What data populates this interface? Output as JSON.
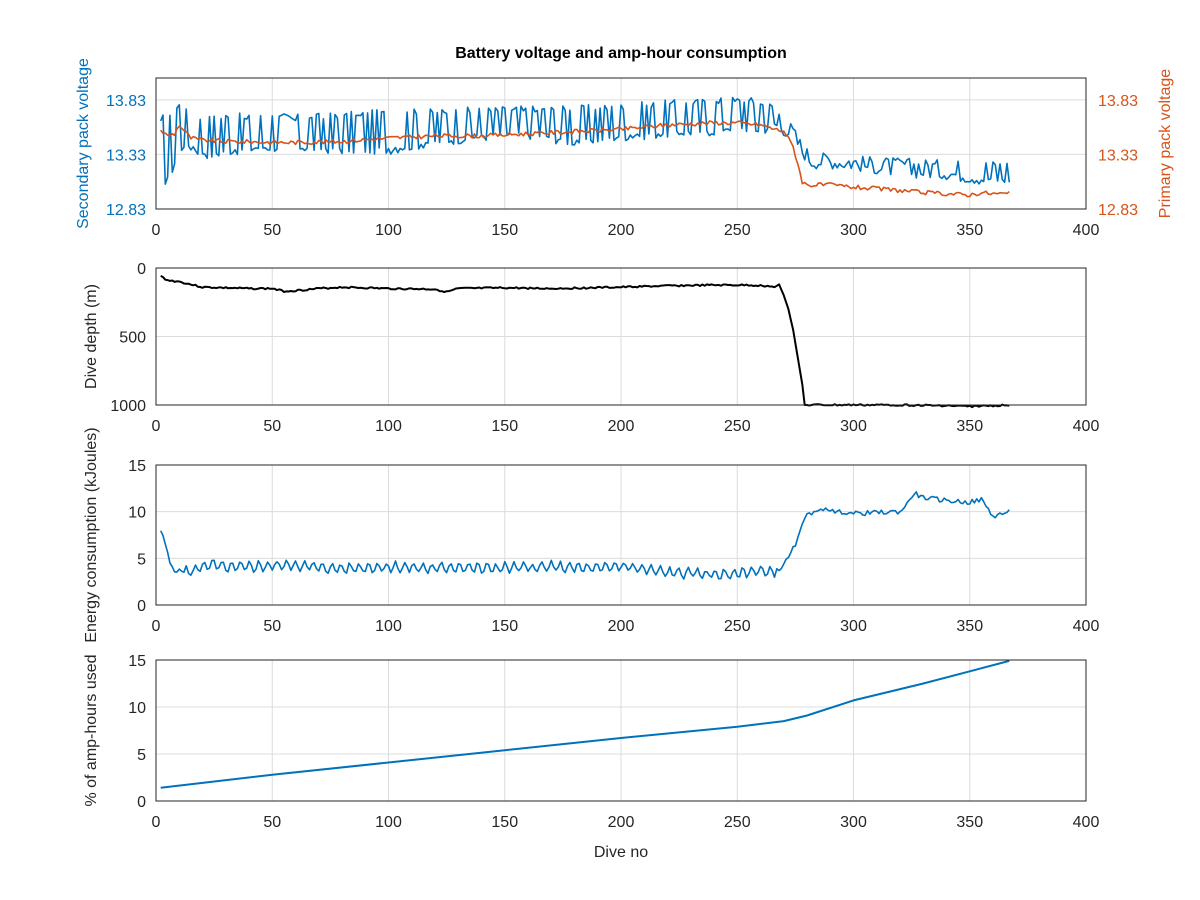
{
  "figure": {
    "title": "Battery voltage and amp-hour consumption",
    "colors": {
      "blue": "#0072BD",
      "orange": "#D95319",
      "black": "#000000",
      "grid": "#dcdcdc",
      "axis": "#262626"
    }
  },
  "chart_data": [
    {
      "type": "line",
      "title": "Battery voltage and amp-hour consumption",
      "xlabel": "",
      "ylabel": "Secondary pack voltage",
      "y2label": "Primary pack voltage",
      "xlim": [
        0,
        400
      ],
      "ylim": [
        12.83,
        14.03
      ],
      "y2lim": [
        12.83,
        14.03
      ],
      "xticks": [
        "0",
        "50",
        "100",
        "150",
        "200",
        "250",
        "300",
        "350",
        "400"
      ],
      "yticks": [
        "12.83",
        "13.33",
        "13.83"
      ],
      "y2ticks": [
        "12.83",
        "13.33",
        "13.83"
      ],
      "grid": true,
      "series": [
        {
          "axis": "left",
          "color": "#0072BD",
          "x": [
            2,
            4,
            6,
            8,
            10,
            12,
            15,
            20,
            25,
            30,
            40,
            50,
            60,
            80,
            100,
            120,
            140,
            160,
            180,
            200,
            220,
            240,
            250,
            260,
            266,
            270,
            274,
            278,
            282,
            290,
            300,
            320,
            340,
            355,
            367
          ],
          "y_low": [
            13.33,
            13.05,
            13.1,
            13.2,
            13.3,
            13.38,
            13.35,
            13.3,
            13.28,
            13.32,
            13.33,
            13.35,
            13.35,
            13.33,
            13.33,
            13.4,
            13.45,
            13.47,
            13.4,
            13.45,
            13.48,
            13.5,
            13.55,
            13.5,
            13.55,
            13.5,
            13.45,
            13.3,
            13.2,
            13.2,
            13.18,
            13.12,
            13.1,
            13.05,
            13.05
          ],
          "y_high": [
            13.65,
            13.75,
            13.7,
            13.8,
            13.83,
            13.78,
            13.7,
            13.68,
            13.7,
            13.72,
            13.7,
            13.72,
            13.7,
            13.72,
            13.75,
            13.75,
            13.77,
            13.78,
            13.78,
            13.8,
            13.83,
            13.85,
            13.87,
            13.85,
            13.8,
            13.7,
            13.6,
            13.45,
            13.35,
            13.35,
            13.32,
            13.3,
            13.28,
            13.28,
            13.28
          ]
        },
        {
          "axis": "right",
          "color": "#D95319",
          "x": [
            2,
            5,
            8,
            10,
            12,
            15,
            20,
            30,
            50,
            60,
            80,
            100,
            120,
            140,
            160,
            180,
            200,
            220,
            240,
            250,
            260,
            268,
            270,
            274,
            276,
            278,
            280,
            290,
            300,
            320,
            330,
            340,
            350,
            355,
            360,
            367
          ],
          "y": [
            13.55,
            13.5,
            13.52,
            13.6,
            13.55,
            13.48,
            13.46,
            13.45,
            13.44,
            13.44,
            13.45,
            13.48,
            13.5,
            13.5,
            13.52,
            13.54,
            13.56,
            13.6,
            13.62,
            13.62,
            13.6,
            13.55,
            13.55,
            13.4,
            13.25,
            13.08,
            13.05,
            13.05,
            13.03,
            13.0,
            12.98,
            12.97,
            12.96,
            12.98,
            12.97,
            12.97
          ]
        }
      ]
    },
    {
      "type": "line",
      "xlabel": "",
      "ylabel": "Dive depth (m)",
      "xlim": [
        0,
        400
      ],
      "ylim": [
        0,
        1000
      ],
      "y_reversed": true,
      "xticks": [
        "0",
        "50",
        "100",
        "150",
        "200",
        "250",
        "300",
        "350",
        "400"
      ],
      "yticks": [
        "0",
        "500",
        "1000"
      ],
      "grid": true,
      "series": [
        {
          "color": "#000000",
          "x": [
            2,
            5,
            10,
            15,
            20,
            30,
            40,
            50,
            55,
            60,
            70,
            80,
            90,
            100,
            120,
            125,
            130,
            150,
            170,
            200,
            220,
            240,
            255,
            262,
            266,
            268,
            270,
            272,
            274,
            276,
            278,
            279,
            280,
            300,
            320,
            340,
            350,
            360,
            367
          ],
          "y": [
            60,
            90,
            100,
            120,
            140,
            145,
            150,
            150,
            170,
            165,
            150,
            140,
            145,
            150,
            155,
            175,
            150,
            145,
            150,
            140,
            130,
            125,
            125,
            130,
            140,
            120,
            200,
            300,
            450,
            650,
            850,
            1000,
            1000,
            1000,
            1000,
            1005,
            1010,
            1005,
            1000
          ]
        }
      ]
    },
    {
      "type": "line",
      "xlabel": "",
      "ylabel": "Energy consumption (kJoules)",
      "xlim": [
        0,
        400
      ],
      "ylim": [
        0,
        15
      ],
      "xticks": [
        "0",
        "50",
        "100",
        "150",
        "200",
        "250",
        "300",
        "350",
        "400"
      ],
      "yticks": [
        "0",
        "5",
        "10",
        "15"
      ],
      "grid": true,
      "series": [
        {
          "color": "#0072BD",
          "x": [
            2,
            4,
            6,
            8,
            10,
            12,
            15,
            20,
            25,
            30,
            40,
            50,
            60,
            70,
            80,
            90,
            100,
            110,
            120,
            130,
            140,
            150,
            160,
            170,
            180,
            190,
            200,
            210,
            220,
            230,
            240,
            247,
            250,
            255,
            260,
            265,
            268,
            272,
            276,
            280,
            284,
            288,
            292,
            296,
            300,
            310,
            320,
            323,
            326,
            330,
            340,
            350,
            355,
            360,
            364,
            367
          ],
          "y": [
            8.0,
            6.5,
            4.5,
            3.8,
            3.6,
            3.7,
            3.5,
            4.2,
            4.3,
            4.0,
            4.1,
            4.2,
            4.3,
            4.0,
            3.9,
            4.0,
            4.1,
            4.0,
            3.9,
            4.1,
            3.9,
            4.0,
            4.0,
            4.1,
            4.0,
            3.9,
            4.2,
            3.8,
            3.5,
            3.4,
            3.3,
            3.2,
            3.4,
            3.6,
            3.6,
            3.6,
            3.8,
            5.0,
            7.0,
            10.0,
            9.8,
            10.5,
            9.9,
            10.0,
            9.8,
            9.9,
            10.0,
            10.8,
            12.0,
            11.5,
            11.2,
            11.0,
            11.3,
            9.5,
            9.8,
            10.0
          ]
        }
      ]
    },
    {
      "type": "line",
      "xlabel": "Dive no",
      "ylabel": "% of amp-hours used",
      "xlim": [
        0,
        400
      ],
      "ylim": [
        0,
        15
      ],
      "xticks": [
        "0",
        "50",
        "100",
        "150",
        "200",
        "250",
        "300",
        "350",
        "400"
      ],
      "yticks": [
        "0",
        "5",
        "10",
        "15"
      ],
      "grid": true,
      "series": [
        {
          "color": "#0072BD",
          "x": [
            2,
            50,
            100,
            150,
            200,
            250,
            270,
            280,
            300,
            330,
            350,
            367
          ],
          "y": [
            1.4,
            2.8,
            4.1,
            5.4,
            6.7,
            7.9,
            8.5,
            9.1,
            10.7,
            12.5,
            13.8,
            14.9
          ]
        }
      ]
    }
  ]
}
